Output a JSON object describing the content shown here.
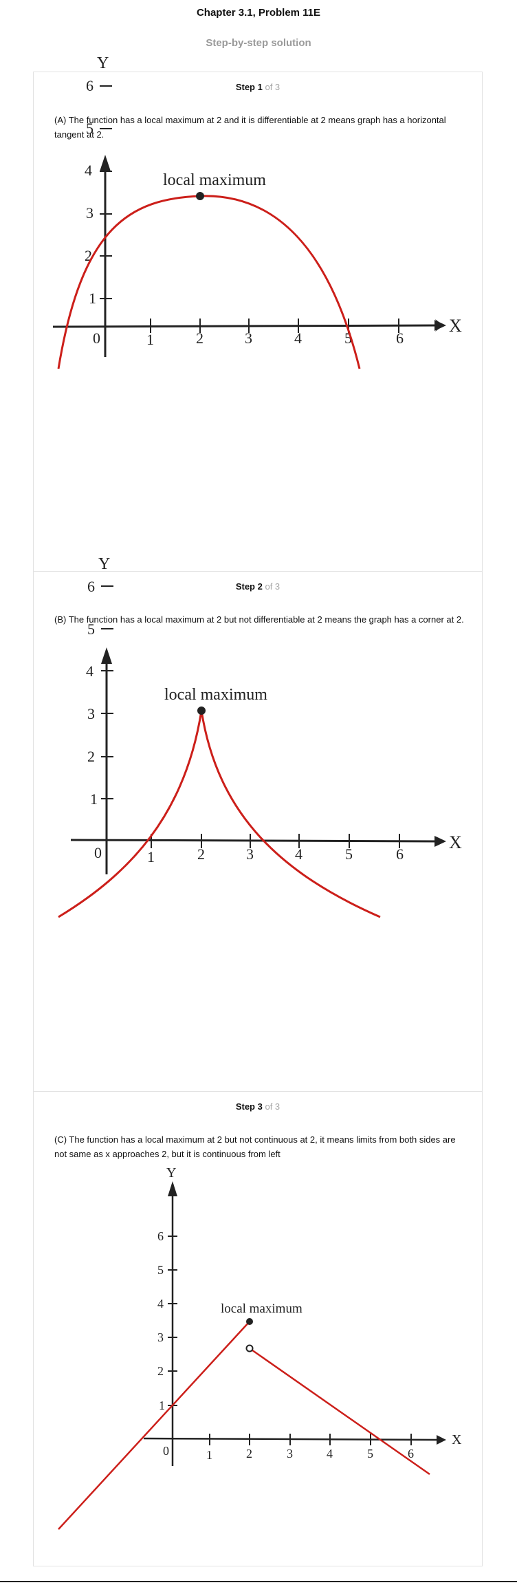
{
  "header": {
    "chapter_title": "Chapter 3.1, Problem 11E",
    "subtitle": "Step-by-step solution"
  },
  "steps": [
    {
      "label": "Step 1",
      "of": "of 3",
      "text": "(A) The function has a local maximum at 2 and it is differentiable at 2 means graph has a horizontal tangent at 2.",
      "graph": {
        "x_axis_label": "X",
        "y_axis_label": "Y",
        "origin_label": "0",
        "x_ticks": [
          "1",
          "2",
          "3",
          "4",
          "5",
          "6"
        ],
        "y_ticks": [
          "1",
          "2",
          "3",
          "4",
          "5",
          "6"
        ],
        "annotation": "local maximum",
        "curve_color": "#cc1f1a"
      }
    },
    {
      "label": "Step 2",
      "of": "of 3",
      "text": "(B) The function has a local maximum at 2 but not differentiable at 2 means the graph has a corner at 2.",
      "graph": {
        "x_axis_label": "X",
        "y_axis_label": "Y",
        "origin_label": "0",
        "x_ticks": [
          "1",
          "2",
          "3",
          "4",
          "5",
          "6"
        ],
        "y_ticks": [
          "1",
          "2",
          "3",
          "4",
          "5",
          "6"
        ],
        "annotation": "local maximum",
        "curve_color": "#cc1f1a"
      }
    },
    {
      "label": "Step 3",
      "of": "of 3",
      "text": "(C) The function has a local maximum at 2 but not continuous at 2, it means limits from both sides are not same as x approaches 2, but it is continuous from left",
      "graph": {
        "x_axis_label": "X",
        "y_axis_label": "Y",
        "origin_label": "0",
        "x_ticks": [
          "1",
          "2",
          "3",
          "4",
          "5",
          "6"
        ],
        "y_ticks": [
          "1",
          "2",
          "3",
          "4",
          "5",
          "6"
        ],
        "annotation": "local maximum",
        "curve_color": "#cc1f1a"
      }
    }
  ]
}
